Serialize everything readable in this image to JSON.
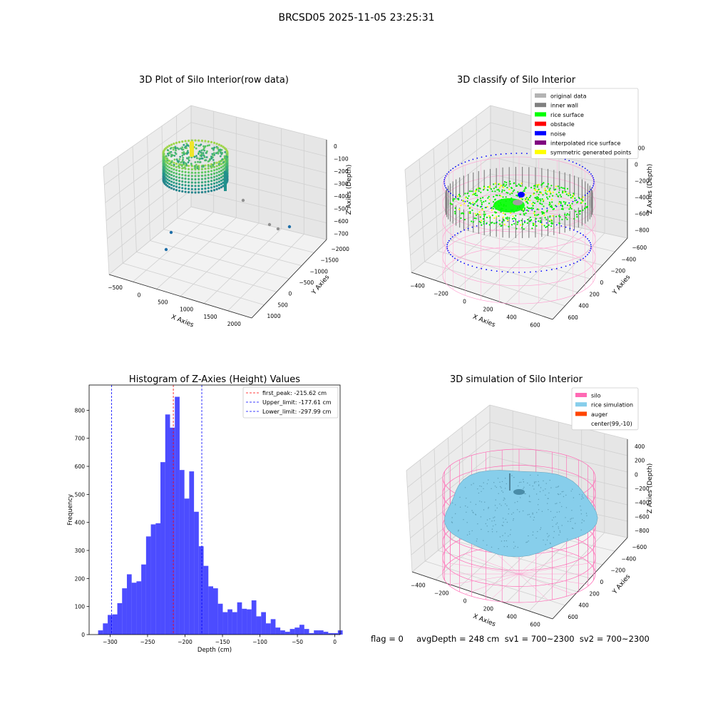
{
  "figure": {
    "title": "BRCSD05 2025-11-05 23:25:31",
    "footer": "flag = 0     avgDepth = 248 cm  sv1 = 700~2300  sv2 = 700~2300"
  },
  "chart_data": [
    {
      "type": "scatter",
      "is3d": true,
      "title": "3D Plot of Silo Interior(row data)",
      "xlabel": "X Axies",
      "ylabel": "Y Axies",
      "zlabel": "Z Axies (Depth)",
      "xticks": [
        "−500",
        "0",
        "500",
        "1000",
        "1500",
        "2000"
      ],
      "yticks": [
        "−2000",
        "−1500",
        "−1000",
        "−500",
        "0",
        "500",
        "1000"
      ],
      "zticks": [
        "0",
        "−100",
        "−200",
        "−300",
        "−400",
        "−500",
        "−600",
        "−700"
      ],
      "colormap": "viridis",
      "outliers": [
        [
          1450,
          -700,
          -350
        ],
        [
          1900,
          -1500,
          -560
        ],
        [
          1650,
          -1300,
          -580
        ],
        [
          300,
          -200,
          -560
        ],
        [
          200,
          -800,
          -700
        ]
      ]
    },
    {
      "type": "scatter",
      "is3d": true,
      "title": "3D classify of Silo Interior",
      "xlabel": "X Axies",
      "ylabel": "Y Axies",
      "zlabel": "Z Axies (Depth)",
      "xticks": [
        "−400",
        "−200",
        "0",
        "200",
        "400",
        "600"
      ],
      "yticks": [
        "−600",
        "−400",
        "−200",
        "0",
        "200",
        "400",
        "600"
      ],
      "zticks": [
        "200",
        "0",
        "−200",
        "−400",
        "−600",
        "−800"
      ],
      "legend_position": "top-right",
      "legend": [
        {
          "label": "original data",
          "color": "#b3b3b3"
        },
        {
          "label": "inner wall",
          "color": "#808080"
        },
        {
          "label": "rice surface",
          "color": "#00ff00"
        },
        {
          "label": "obstacle",
          "color": "#ff0000"
        },
        {
          "label": "noise",
          "color": "#0000ff"
        },
        {
          "label": "interpolated rice surface",
          "color": "#800080"
        },
        {
          "label": "symmetric generated points",
          "color": "#ffff00"
        }
      ]
    },
    {
      "type": "bar",
      "title": "Histogram of Z-Axies (Height) Values",
      "xlabel": "Depth (cm)",
      "ylabel": "Frequency",
      "xlim": [
        -328,
        7
      ],
      "ylim": [
        0,
        890
      ],
      "xticks": [
        -300,
        -250,
        -200,
        -150,
        -100,
        -50,
        0
      ],
      "xtick_labels": [
        "−300",
        "−250",
        "−200",
        "−150",
        "−100",
        "−50",
        "0"
      ],
      "yticks": [
        0,
        100,
        200,
        300,
        400,
        500,
        600,
        700,
        800
      ],
      "bar_color": "#0000ff",
      "bin_width": 6.4,
      "bin_start": -316,
      "values": [
        15,
        40,
        70,
        72,
        112,
        165,
        215,
        185,
        190,
        250,
        350,
        393,
        397,
        615,
        785,
        738,
        848,
        587,
        485,
        582,
        438,
        315,
        245,
        172,
        165,
        110,
        80,
        90,
        80,
        115,
        92,
        90,
        122,
        65,
        80,
        40,
        55,
        25,
        15,
        10,
        20,
        25,
        35,
        20,
        5,
        15,
        15,
        10,
        5,
        5,
        15
      ],
      "lines": [
        {
          "value": -215.62,
          "color": "#ff0000",
          "label": "first_peak: -215.62 cm"
        },
        {
          "value": -177.61,
          "color": "#0000ff",
          "label": "Upper_limit: -177.61 cm"
        },
        {
          "value": -297.99,
          "color": "#0000ff",
          "label": "Lower_limit: -297.99 cm"
        }
      ],
      "legend_position": "top-right"
    },
    {
      "type": "scatter",
      "is3d": true,
      "title": "3D simulation of Silo Interior",
      "xlabel": "X Axies",
      "ylabel": "Y Axies",
      "zlabel": "Z Axies (Depth)",
      "xticks": [
        "−400",
        "−200",
        "0",
        "200",
        "400",
        "600"
      ],
      "yticks": [
        "−600",
        "−400",
        "−200",
        "0",
        "200",
        "400",
        "600"
      ],
      "zticks": [
        "400",
        "200",
        "0",
        "−200",
        "−400",
        "−600",
        "−800"
      ],
      "legend_position": "top-right",
      "legend": [
        {
          "label": "silo",
          "color": "#ff69b4"
        },
        {
          "label": "rice simulation",
          "color": "#87ceeb"
        },
        {
          "label": "auger",
          "color": "#ff4500"
        },
        {
          "label": "center(99,-10)",
          "color": "none"
        }
      ]
    }
  ]
}
